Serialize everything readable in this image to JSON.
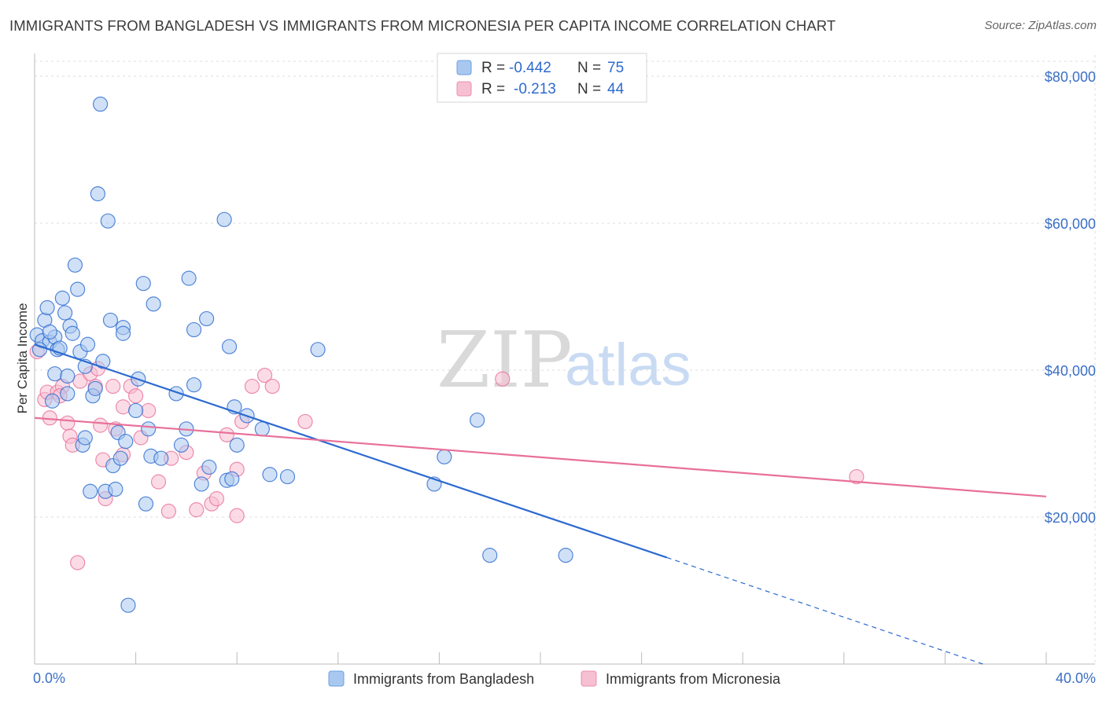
{
  "title": "IMMIGRANTS FROM BANGLADESH VS IMMIGRANTS FROM MICRONESIA PER CAPITA INCOME CORRELATION CHART",
  "source": "Source: ZipAtlas.com",
  "watermark": {
    "zip": "ZIP",
    "atlas": "atlas"
  },
  "colors": {
    "blue": "#2d6ad0",
    "blue_fill": "#a9c8f0",
    "pink": "#e8709a",
    "pink_fill": "#f7bfd2",
    "grid": "#d8d8d8",
    "axis_label": "#3b6fc6"
  },
  "legend": {
    "rows": [
      {
        "r_label": "R =",
        "r_value": "-0.442",
        "n_label": "N =",
        "n_value": "75"
      },
      {
        "r_label": "R =",
        "r_value": "-0.213",
        "n_label": "N =",
        "n_value": "44"
      }
    ]
  },
  "chart_data": {
    "type": "scatter",
    "title": "IMMIGRANTS FROM BANGLADESH VS IMMIGRANTS FROM MICRONESIA PER CAPITA INCOME CORRELATION CHART",
    "xlabel": "",
    "ylabel": "Per Capita Income",
    "xlim": [
      0,
      40
    ],
    "ylim": [
      0,
      84000
    ],
    "x_tick_labels": [
      "0.0%",
      "40.0%"
    ],
    "y_ticks": [
      20000,
      40000,
      60000,
      80000
    ],
    "y_tick_labels": [
      "$20,000",
      "$40,000",
      "$60,000",
      "$80,000"
    ],
    "grid": true,
    "legend_placement": "top-center",
    "series": [
      {
        "name": "Immigrants from Bangladesh",
        "color": "#2d6ad0",
        "r": -0.442,
        "n": 75,
        "trend": {
          "x0": 0,
          "y0": 43500,
          "x1": 25,
          "y1": 14500,
          "dashed_to_x": 37.5,
          "dashed_to_y": 0
        },
        "points": [
          [
            0.1,
            44800
          ],
          [
            0.3,
            44000
          ],
          [
            0.4,
            46800
          ],
          [
            0.5,
            48500
          ],
          [
            0.6,
            43800
          ],
          [
            0.8,
            44500
          ],
          [
            0.7,
            35800
          ],
          [
            0.8,
            39500
          ],
          [
            0.9,
            42800
          ],
          [
            1.0,
            43000
          ],
          [
            1.1,
            49800
          ],
          [
            1.2,
            47800
          ],
          [
            1.3,
            39200
          ],
          [
            1.4,
            46000
          ],
          [
            1.5,
            45000
          ],
          [
            1.6,
            54300
          ],
          [
            1.7,
            51000
          ],
          [
            1.8,
            42500
          ],
          [
            1.9,
            29800
          ],
          [
            2.0,
            30800
          ],
          [
            2.1,
            43500
          ],
          [
            2.2,
            23500
          ],
          [
            2.3,
            36500
          ],
          [
            2.4,
            37500
          ],
          [
            2.5,
            64000
          ],
          [
            2.6,
            76200
          ],
          [
            2.7,
            41200
          ],
          [
            2.8,
            23500
          ],
          [
            2.9,
            60300
          ],
          [
            3.0,
            46800
          ],
          [
            3.1,
            27000
          ],
          [
            3.2,
            23800
          ],
          [
            3.3,
            31500
          ],
          [
            3.4,
            28000
          ],
          [
            3.5,
            45800
          ],
          [
            3.5,
            45000
          ],
          [
            3.6,
            30300
          ],
          [
            3.7,
            8000
          ],
          [
            4.0,
            34500
          ],
          [
            4.1,
            38800
          ],
          [
            4.3,
            51800
          ],
          [
            4.4,
            21800
          ],
          [
            4.5,
            32000
          ],
          [
            4.6,
            28300
          ],
          [
            4.7,
            49000
          ],
          [
            5.0,
            28000
          ],
          [
            5.6,
            36800
          ],
          [
            5.8,
            29800
          ],
          [
            6.0,
            32000
          ],
          [
            6.1,
            52500
          ],
          [
            6.3,
            45500
          ],
          [
            6.3,
            38000
          ],
          [
            6.6,
            24500
          ],
          [
            6.8,
            47000
          ],
          [
            6.9,
            26800
          ],
          [
            7.5,
            60500
          ],
          [
            7.6,
            25000
          ],
          [
            7.7,
            43200
          ],
          [
            7.8,
            25200
          ],
          [
            7.9,
            35000
          ],
          [
            8.0,
            29800
          ],
          [
            8.4,
            33800
          ],
          [
            9.0,
            32000
          ],
          [
            9.3,
            25800
          ],
          [
            10.0,
            25500
          ],
          [
            11.2,
            42800
          ],
          [
            15.8,
            24500
          ],
          [
            16.2,
            28200
          ],
          [
            17.5,
            33200
          ],
          [
            18.0,
            14800
          ],
          [
            21.0,
            14800
          ],
          [
            0.2,
            42800
          ],
          [
            1.3,
            36800
          ],
          [
            2.0,
            40500
          ],
          [
            0.6,
            45200
          ]
        ]
      },
      {
        "name": "Immigrants from Micronesia",
        "color": "#e8709a",
        "r": -0.213,
        "n": 44,
        "trend": {
          "x0": 0,
          "y0": 33500,
          "x1": 40,
          "y1": 22800
        },
        "points": [
          [
            0.1,
            42500
          ],
          [
            0.4,
            36000
          ],
          [
            0.5,
            37000
          ],
          [
            0.6,
            33500
          ],
          [
            0.9,
            37000
          ],
          [
            1.1,
            37800
          ],
          [
            1.3,
            32800
          ],
          [
            1.4,
            31000
          ],
          [
            1.5,
            29800
          ],
          [
            1.7,
            13800
          ],
          [
            1.8,
            38500
          ],
          [
            2.2,
            39500
          ],
          [
            2.4,
            37800
          ],
          [
            2.5,
            40200
          ],
          [
            2.6,
            32500
          ],
          [
            2.7,
            27800
          ],
          [
            2.8,
            22500
          ],
          [
            3.1,
            37800
          ],
          [
            3.2,
            32000
          ],
          [
            3.5,
            35000
          ],
          [
            3.5,
            28500
          ],
          [
            3.8,
            37800
          ],
          [
            4.0,
            36500
          ],
          [
            4.2,
            30800
          ],
          [
            4.5,
            34500
          ],
          [
            4.9,
            24800
          ],
          [
            5.3,
            20800
          ],
          [
            5.4,
            28000
          ],
          [
            6.0,
            28800
          ],
          [
            6.4,
            21000
          ],
          [
            6.7,
            26000
          ],
          [
            7.0,
            21800
          ],
          [
            7.2,
            22500
          ],
          [
            7.6,
            31200
          ],
          [
            8.0,
            20200
          ],
          [
            8.0,
            26500
          ],
          [
            8.2,
            33000
          ],
          [
            8.6,
            37800
          ],
          [
            9.1,
            39300
          ],
          [
            9.4,
            37800
          ],
          [
            10.7,
            33000
          ],
          [
            18.5,
            38800
          ],
          [
            32.5,
            25500
          ],
          [
            1.0,
            36500
          ]
        ]
      }
    ]
  }
}
